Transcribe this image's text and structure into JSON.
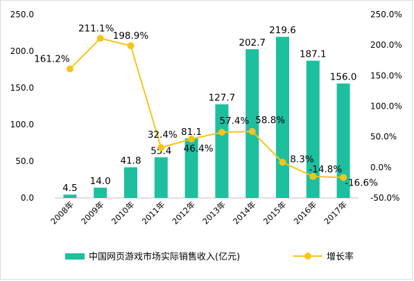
{
  "chart_data": {
    "type": "bar+line",
    "categories": [
      "2008年",
      "2009年",
      "2010年",
      "2011年",
      "2012年",
      "2013年",
      "2014年",
      "2015年",
      "2016年",
      "2017年"
    ],
    "series": [
      {
        "name": "中国网页游戏市场实际销售收入(亿元)",
        "type": "bar",
        "axis": "left",
        "color": "#1dbf9f",
        "values": [
          4.5,
          14.0,
          41.8,
          55.4,
          81.1,
          127.7,
          202.7,
          219.6,
          187.1,
          156.0
        ],
        "labels": [
          "4.5",
          "14.0",
          "41.8",
          "55.4",
          "81.1",
          "127.7",
          "202.7",
          "219.6",
          "187.1",
          "156.0"
        ]
      },
      {
        "name": "增长率",
        "type": "line",
        "axis": "right",
        "color": "#f5c518",
        "values": [
          161.2,
          211.1,
          198.9,
          32.4,
          46.4,
          57.4,
          58.8,
          8.3,
          -14.8,
          -16.6
        ],
        "labels": [
          "161.2%",
          "211.1%",
          "198.9%",
          "32.4%",
          "46.4%",
          "57.4%",
          "58.8%",
          "8.3%",
          "-14.8%",
          "-16.6%"
        ]
      }
    ],
    "y_left": {
      "min": 0,
      "max": 250,
      "ticks": [
        "0.0",
        "50.0",
        "100.0",
        "150.0",
        "200.0",
        "250.0"
      ]
    },
    "y_right": {
      "min": -50,
      "max": 250,
      "ticks": [
        "-50.0%",
        "0.0%",
        "50.0%",
        "100.0%",
        "150.0%",
        "200.0%",
        "250.0%"
      ]
    },
    "grid": false,
    "legend_position": "bottom"
  }
}
